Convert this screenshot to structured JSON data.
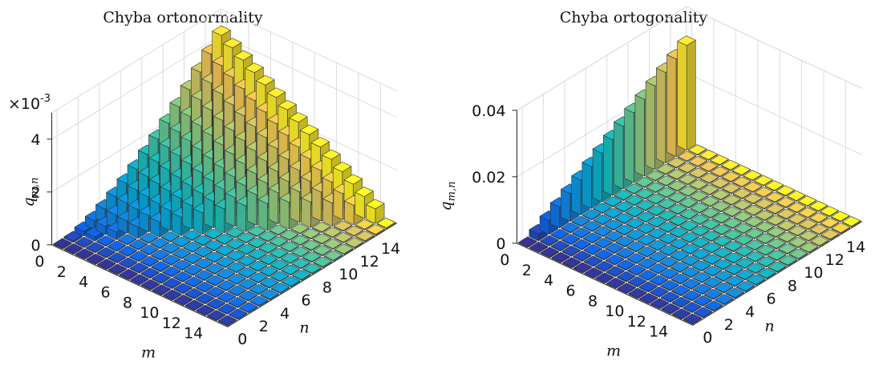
{
  "chart_data": [
    {
      "type": "bar3d",
      "title": "Chyba ortonormality",
      "xlabel": "m",
      "ylabel": "n",
      "zlabel_main": "q",
      "zlabel_sub": "m,n",
      "exponent_prefix": "×10",
      "exponent_power": "-3",
      "m_ticks": [
        "0",
        "2",
        "4",
        "6",
        "8",
        "10",
        "12",
        "14"
      ],
      "n_ticks": [
        "0",
        "2",
        "4",
        "6",
        "8",
        "10",
        "12",
        "14"
      ],
      "z_ticks": [
        {
          "value": 0,
          "label": "0"
        },
        {
          "value": 2,
          "label": "2"
        },
        {
          "value": 4,
          "label": "4"
        }
      ],
      "zlim": [
        0,
        5
      ],
      "grid": true,
      "colormap": "parula",
      "value_rule": "bar height for cell (m,n) = 4.4e-3 * (n/15)^1.6 * (1 - m/16) for n > m, ~0 for n <= m (values in units of 1e-3)"
    },
    {
      "type": "bar3d",
      "title": "Chyba ortogonality",
      "xlabel": "m",
      "ylabel": "n",
      "zlabel_main": "q",
      "zlabel_sub": "m,n",
      "m_ticks": [
        "0",
        "2",
        "4",
        "6",
        "8",
        "10",
        "12",
        "14"
      ],
      "n_ticks": [
        "0",
        "2",
        "4",
        "6",
        "8",
        "10",
        "12",
        "14"
      ],
      "z_ticks": [
        {
          "value": 0,
          "label": "0"
        },
        {
          "value": 0.02,
          "label": "0.02"
        },
        {
          "value": 0.04,
          "label": "0.04"
        }
      ],
      "zlim": [
        0,
        0.04
      ],
      "grid": true,
      "colormap": "parula",
      "value_rule": "bar height nonzero only in row m = 0: about 0.0021 * n; all other cells ~0"
    }
  ]
}
